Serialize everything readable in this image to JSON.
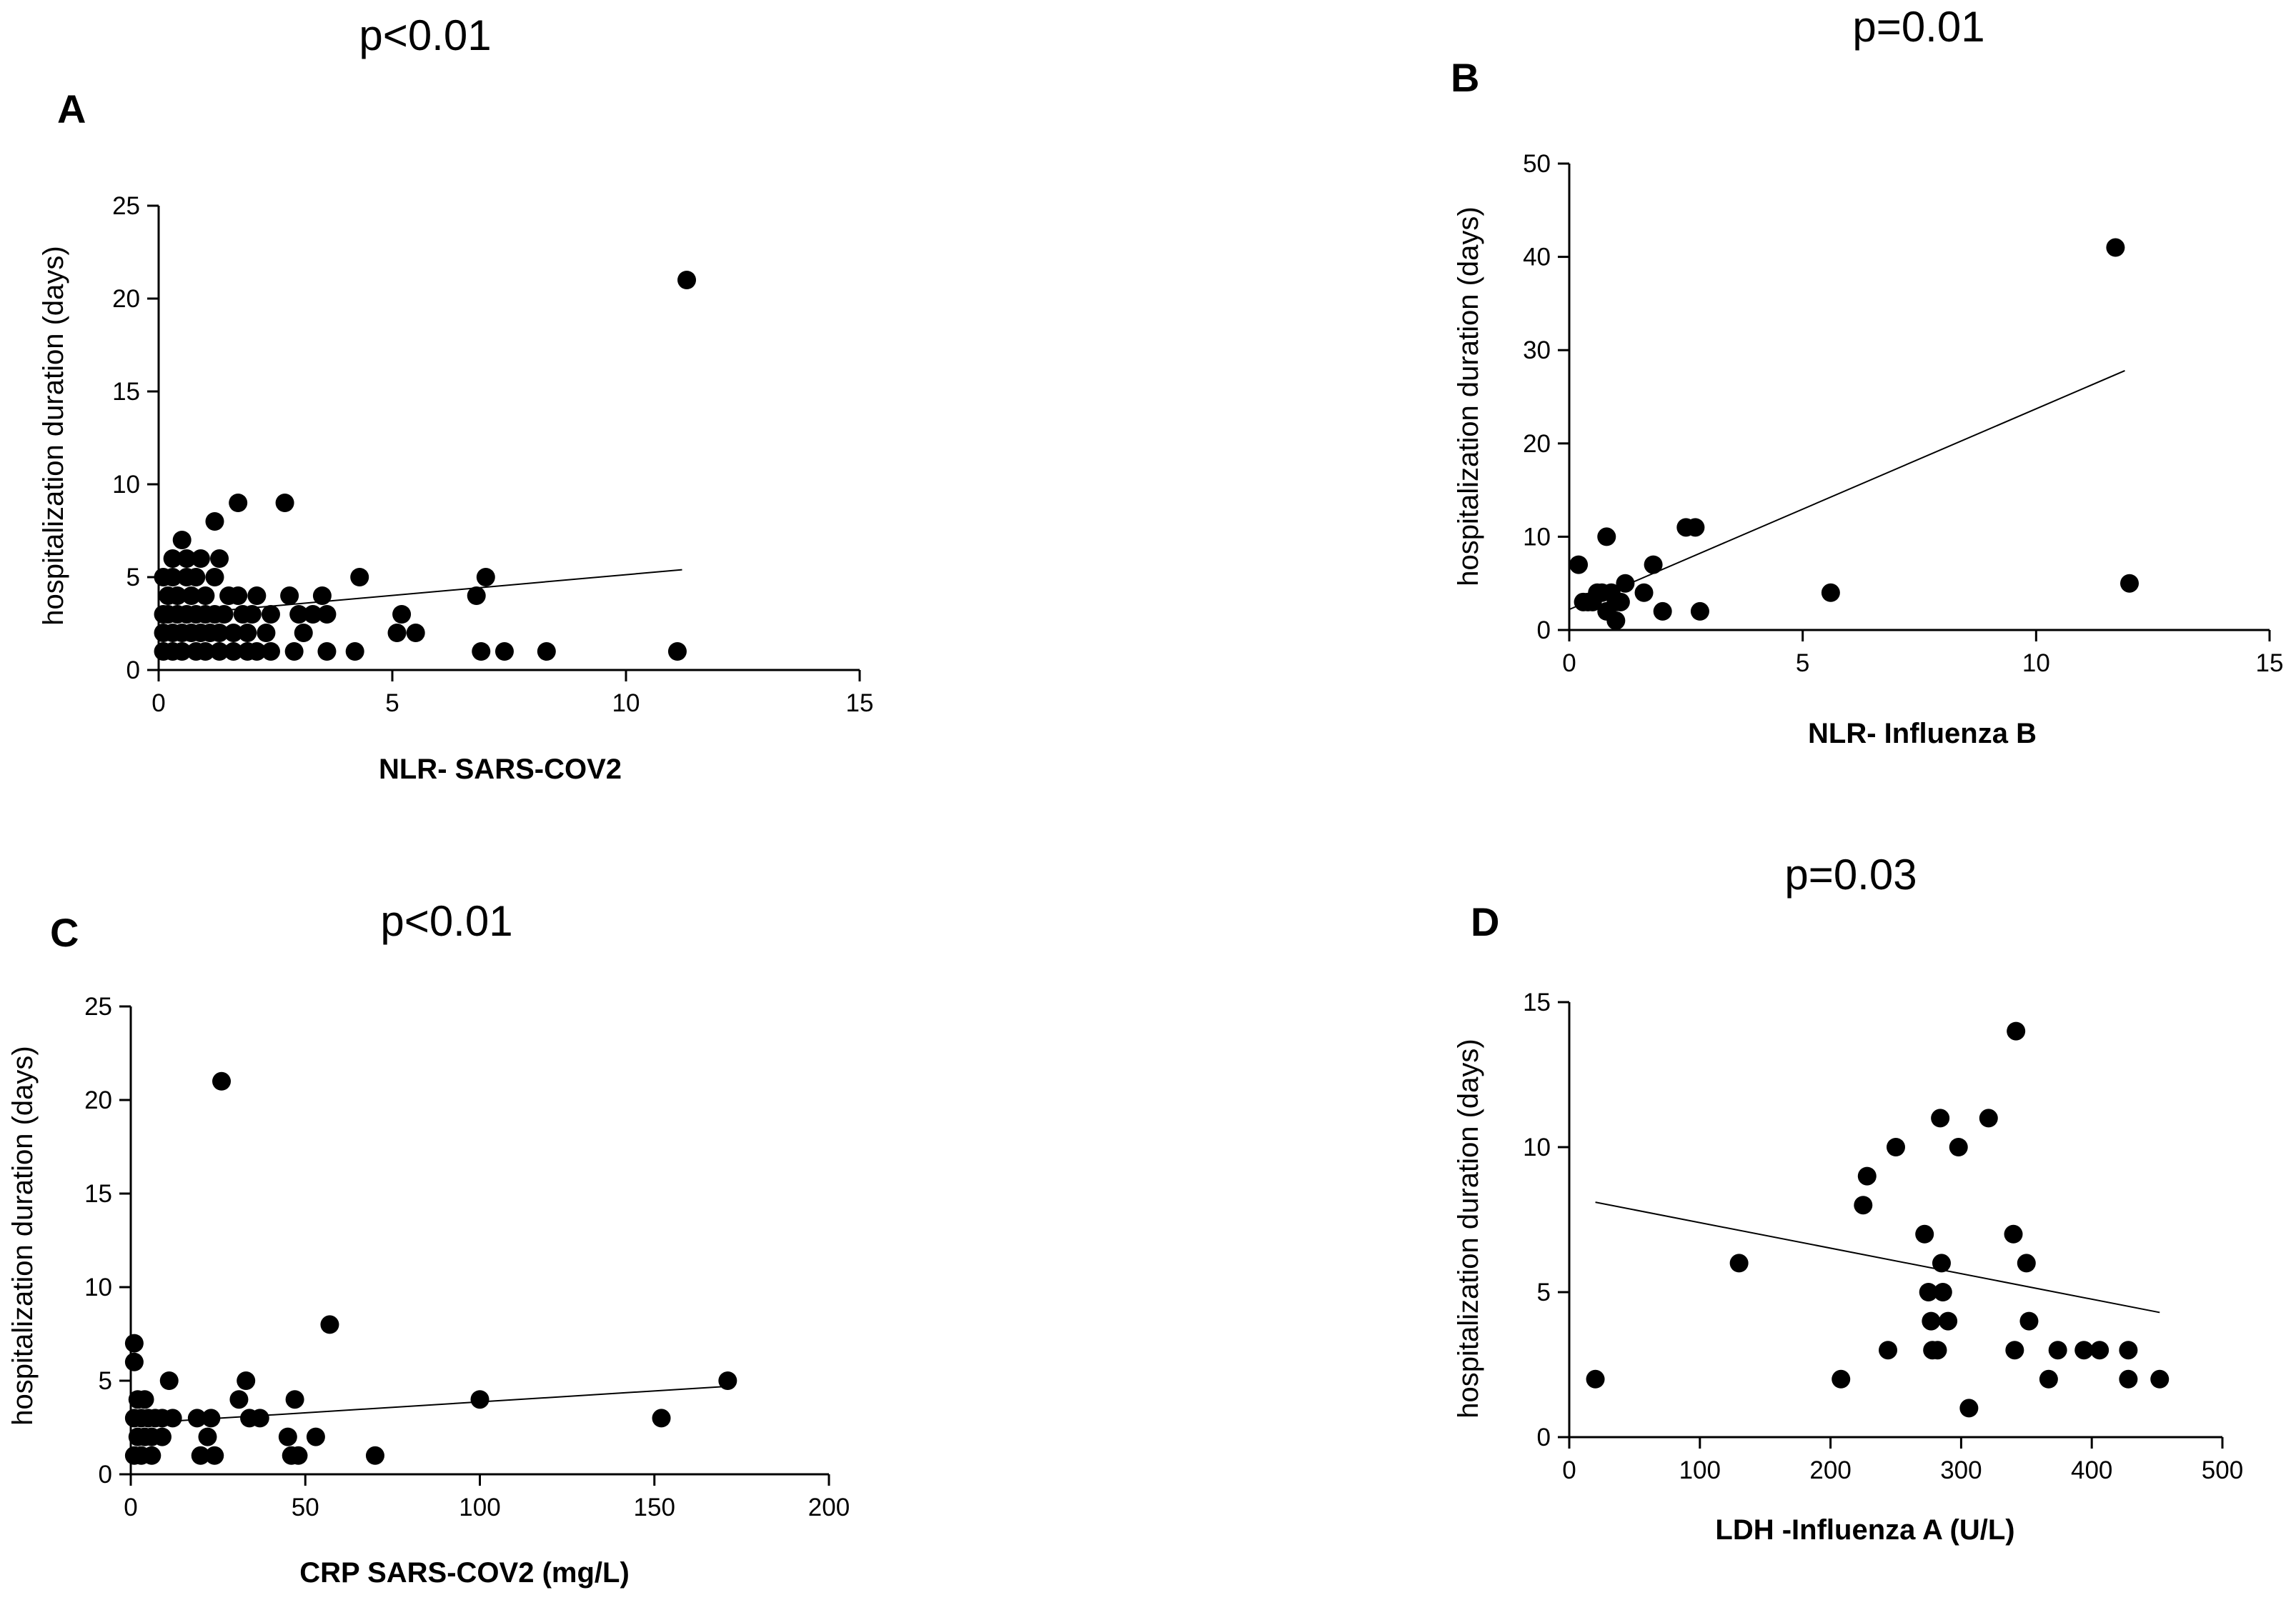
{
  "chart_data": [
    {
      "type": "scatter",
      "panel_label": "A",
      "annotation": "p<0.01",
      "xlabel": "NLR- SARS-COV2",
      "ylabel": "hospitalization duration (days)",
      "xlim": [
        0,
        15
      ],
      "ylim": [
        0,
        25
      ],
      "xticks": [
        0,
        5,
        10,
        15
      ],
      "yticks": [
        0,
        5,
        10,
        15,
        20,
        25
      ],
      "grid": false,
      "regression_line": {
        "x": [
          0,
          11.2
        ],
        "y": [
          2.9,
          5.4
        ]
      },
      "points": [
        [
          11.3,
          21
        ],
        [
          0.5,
          7
        ],
        [
          0.3,
          6
        ],
        [
          0.6,
          6
        ],
        [
          0.9,
          6
        ],
        [
          1.3,
          6
        ],
        [
          1.2,
          8
        ],
        [
          1.7,
          9
        ],
        [
          2.7,
          9
        ],
        [
          0.1,
          5
        ],
        [
          0.3,
          5
        ],
        [
          0.6,
          5
        ],
        [
          0.8,
          5
        ],
        [
          1.2,
          5
        ],
        [
          4.3,
          5
        ],
        [
          7.0,
          5
        ],
        [
          0.2,
          4
        ],
        [
          0.4,
          4
        ],
        [
          0.7,
          4
        ],
        [
          1.0,
          4
        ],
        [
          1.5,
          4
        ],
        [
          1.7,
          4
        ],
        [
          2.1,
          4
        ],
        [
          2.8,
          4
        ],
        [
          3.5,
          4
        ],
        [
          6.8,
          4
        ],
        [
          0.1,
          3
        ],
        [
          0.2,
          3
        ],
        [
          0.4,
          3
        ],
        [
          0.6,
          3
        ],
        [
          0.8,
          3
        ],
        [
          1.0,
          3
        ],
        [
          1.2,
          3
        ],
        [
          1.4,
          3
        ],
        [
          1.8,
          3
        ],
        [
          2.0,
          3
        ],
        [
          2.4,
          3
        ],
        [
          3.0,
          3
        ],
        [
          3.3,
          3
        ],
        [
          3.6,
          3
        ],
        [
          5.2,
          3
        ],
        [
          0.1,
          2
        ],
        [
          0.3,
          2
        ],
        [
          0.5,
          2
        ],
        [
          0.7,
          2
        ],
        [
          0.9,
          2
        ],
        [
          1.1,
          2
        ],
        [
          1.3,
          2
        ],
        [
          1.6,
          2
        ],
        [
          1.9,
          2
        ],
        [
          2.3,
          2
        ],
        [
          3.1,
          2
        ],
        [
          5.1,
          2
        ],
        [
          5.5,
          2
        ],
        [
          0.1,
          1
        ],
        [
          0.3,
          1
        ],
        [
          0.5,
          1
        ],
        [
          0.8,
          1
        ],
        [
          1.0,
          1
        ],
        [
          1.3,
          1
        ],
        [
          1.6,
          1
        ],
        [
          1.9,
          1
        ],
        [
          2.1,
          1
        ],
        [
          2.4,
          1
        ],
        [
          2.9,
          1
        ],
        [
          3.6,
          1
        ],
        [
          4.2,
          1
        ],
        [
          6.9,
          1
        ],
        [
          7.4,
          1
        ],
        [
          8.3,
          1
        ],
        [
          11.1,
          1
        ]
      ]
    },
    {
      "type": "scatter",
      "panel_label": "B",
      "annotation": "p=0.01",
      "xlabel": "NLR- Influenza B",
      "ylabel": "hospitalization duration (days)",
      "xlim": [
        0,
        15
      ],
      "ylim": [
        0,
        50
      ],
      "xticks": [
        0,
        5,
        10,
        15
      ],
      "yticks": [
        0,
        10,
        20,
        30,
        40,
        50
      ],
      "grid": false,
      "regression_line": {
        "x": [
          0,
          11.9
        ],
        "y": [
          2.2,
          27.8
        ]
      },
      "points": [
        [
          11.7,
          41
        ],
        [
          12.0,
          5
        ],
        [
          5.6,
          4
        ],
        [
          0.2,
          7
        ],
        [
          0.8,
          10
        ],
        [
          1.8,
          7
        ],
        [
          2.5,
          11
        ],
        [
          2.7,
          11
        ],
        [
          0.3,
          3
        ],
        [
          0.5,
          3
        ],
        [
          0.6,
          4
        ],
        [
          0.7,
          4
        ],
        [
          0.9,
          4
        ],
        [
          1.0,
          3
        ],
        [
          1.2,
          5
        ],
        [
          1.6,
          4
        ],
        [
          0.8,
          2
        ],
        [
          1.0,
          1
        ],
        [
          2.0,
          2
        ],
        [
          2.8,
          2
        ],
        [
          0.4,
          3
        ],
        [
          1.1,
          3
        ]
      ]
    },
    {
      "type": "scatter",
      "panel_label": "C",
      "annotation": "p<0.01",
      "xlabel": "CRP SARS-COV2 (mg/L)",
      "ylabel": "hospitalization duration (days)",
      "xlim": [
        0,
        200
      ],
      "ylim": [
        0,
        25
      ],
      "xticks": [
        0,
        50,
        100,
        150,
        200
      ],
      "yticks": [
        0,
        5,
        10,
        15,
        20,
        25
      ],
      "grid": false,
      "regression_line": {
        "x": [
          0,
          171
        ],
        "y": [
          2.7,
          4.7
        ]
      },
      "points": [
        [
          26,
          21
        ],
        [
          57,
          8
        ],
        [
          1,
          7
        ],
        [
          1,
          6
        ],
        [
          11,
          5
        ],
        [
          33,
          5
        ],
        [
          171,
          5
        ],
        [
          2,
          4
        ],
        [
          4,
          4
        ],
        [
          31,
          4
        ],
        [
          47,
          4
        ],
        [
          100,
          4
        ],
        [
          152,
          3
        ],
        [
          1,
          3
        ],
        [
          3,
          3
        ],
        [
          5,
          3
        ],
        [
          7,
          3
        ],
        [
          9,
          3
        ],
        [
          12,
          3
        ],
        [
          19,
          3
        ],
        [
          23,
          3
        ],
        [
          34,
          3
        ],
        [
          37,
          3
        ],
        [
          2,
          2
        ],
        [
          4,
          2
        ],
        [
          6,
          2
        ],
        [
          9,
          2
        ],
        [
          22,
          2
        ],
        [
          45,
          2
        ],
        [
          53,
          2
        ],
        [
          1,
          1
        ],
        [
          3,
          1
        ],
        [
          6,
          1
        ],
        [
          20,
          1
        ],
        [
          24,
          1
        ],
        [
          46,
          1
        ],
        [
          48,
          1
        ],
        [
          70,
          1
        ]
      ]
    },
    {
      "type": "scatter",
      "panel_label": "D",
      "annotation": "p=0.03",
      "xlabel": "LDH -Influenza A (U/L)",
      "ylabel": "hospitalization duration (days)",
      "xlim": [
        0,
        500
      ],
      "ylim": [
        0,
        15
      ],
      "xticks": [
        0,
        100,
        200,
        300,
        400,
        500
      ],
      "yticks": [
        0,
        5,
        10,
        15
      ],
      "grid": false,
      "regression_line": {
        "x": [
          20,
          452
        ],
        "y": [
          8.1,
          4.3
        ]
      },
      "points": [
        [
          20,
          2
        ],
        [
          130,
          6
        ],
        [
          208,
          2
        ],
        [
          225,
          8
        ],
        [
          228,
          9
        ],
        [
          244,
          3
        ],
        [
          250,
          10
        ],
        [
          272,
          7
        ],
        [
          275,
          5
        ],
        [
          277,
          4
        ],
        [
          278,
          3
        ],
        [
          282,
          3
        ],
        [
          284,
          11
        ],
        [
          285,
          6
        ],
        [
          286,
          5
        ],
        [
          290,
          4
        ],
        [
          298,
          10
        ],
        [
          306,
          1
        ],
        [
          321,
          11
        ],
        [
          340,
          7
        ],
        [
          342,
          14
        ],
        [
          341,
          3
        ],
        [
          350,
          6
        ],
        [
          352,
          4
        ],
        [
          367,
          2
        ],
        [
          374,
          3
        ],
        [
          394,
          3
        ],
        [
          406,
          3
        ],
        [
          428,
          3
        ],
        [
          428,
          2
        ],
        [
          452,
          2
        ]
      ]
    }
  ]
}
